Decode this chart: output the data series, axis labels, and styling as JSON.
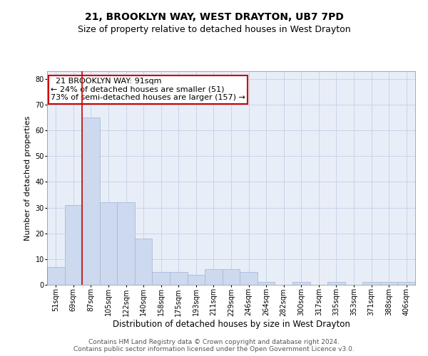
{
  "title": "21, BROOKLYN WAY, WEST DRAYTON, UB7 7PD",
  "subtitle": "Size of property relative to detached houses in West Drayton",
  "xlabel": "Distribution of detached houses by size in West Drayton",
  "ylabel": "Number of detached properties",
  "categories": [
    "51sqm",
    "69sqm",
    "87sqm",
    "105sqm",
    "122sqm",
    "140sqm",
    "158sqm",
    "175sqm",
    "193sqm",
    "211sqm",
    "229sqm",
    "246sqm",
    "264sqm",
    "282sqm",
    "300sqm",
    "317sqm",
    "335sqm",
    "353sqm",
    "371sqm",
    "388sqm",
    "406sqm"
  ],
  "values": [
    7,
    31,
    65,
    32,
    32,
    18,
    5,
    5,
    4,
    6,
    6,
    5,
    1,
    0,
    1,
    0,
    1,
    0,
    1,
    1,
    1
  ],
  "bar_color": "#ccd9ee",
  "bar_edgecolor": "#aabbd8",
  "property_line_index": 2,
  "property_line_color": "#cc0000",
  "annotation_text": "  21 BROOKLYN WAY: 91sqm\n← 24% of detached houses are smaller (51)\n73% of semi-detached houses are larger (157) →",
  "annotation_box_edgecolor": "#cc0000",
  "ylim": [
    0,
    83
  ],
  "yticks": [
    0,
    10,
    20,
    30,
    40,
    50,
    60,
    70,
    80
  ],
  "grid_color": "#c8d4e8",
  "background_color": "#e8eef8",
  "footer_line1": "Contains HM Land Registry data © Crown copyright and database right 2024.",
  "footer_line2": "Contains public sector information licensed under the Open Government Licence v3.0.",
  "title_fontsize": 10,
  "subtitle_fontsize": 9,
  "annotation_fontsize": 8,
  "tick_fontsize": 7,
  "xlabel_fontsize": 8.5,
  "ylabel_fontsize": 8,
  "footer_fontsize": 6.5
}
